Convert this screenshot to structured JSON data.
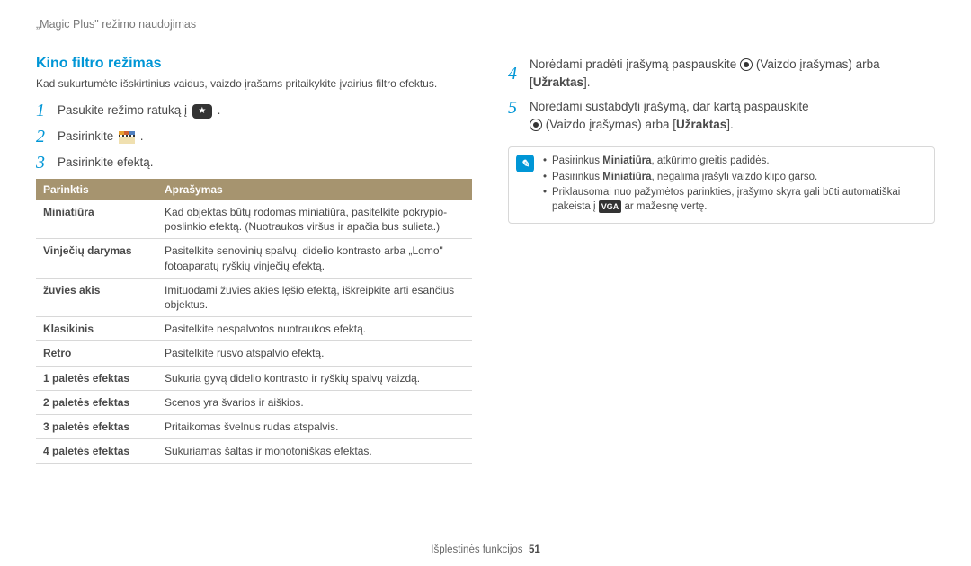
{
  "breadcrumb": "„Magic Plus\" režimo naudojimas",
  "section_title": "Kino filtro režimas",
  "intro": "Kad sukurtumėte išskirtinius vaidus, vaizdo įrašams pritaikykite įvairius filtro efektus.",
  "steps_left": [
    {
      "num": "1",
      "text_before": "Pasukite režimo ratuką į ",
      "icon": "mode-dial",
      "text_after": "."
    },
    {
      "num": "2",
      "text_before": "Pasirinkite ",
      "icon": "film",
      "text_after": "."
    },
    {
      "num": "3",
      "text_before": "Pasirinkite efektą.",
      "icon": null,
      "text_after": ""
    }
  ],
  "table": {
    "headers": [
      "Parinktis",
      "Aprašymas"
    ],
    "rows": [
      {
        "name": "Miniatiūra",
        "desc": "Kad objektas būtų rodomas miniatiūra, pasitelkite pokrypio-poslinkio efektą. (Nuotraukos viršus ir apačia bus sulieta.)"
      },
      {
        "name": "Vinječių darymas",
        "desc": "Pasitelkite senovinių spalvų, didelio kontrasto arba „Lomo\" fotoaparatų ryškių vinječių efektą."
      },
      {
        "name": "žuvies akis",
        "desc": "Imituodami žuvies akies lęšio efektą, iškreipkite arti esančius objektus."
      },
      {
        "name": "Klasikinis",
        "desc": "Pasitelkite nespalvotos nuotraukos efektą."
      },
      {
        "name": "Retro",
        "desc": "Pasitelkite rusvo atspalvio efektą."
      },
      {
        "name": "1 paletės efektas",
        "desc": "Sukuria gyvą didelio kontrasto ir ryškių spalvų vaizdą."
      },
      {
        "name": "2 paletės efektas",
        "desc": "Scenos yra švarios ir aiškios."
      },
      {
        "name": "3 paletės efektas",
        "desc": "Pritaikomas švelnus rudas atspalvis."
      },
      {
        "name": "4 paletės efektas",
        "desc": "Sukuriamas šaltas ir monotoniškas efektas."
      }
    ]
  },
  "steps_right": {
    "s4": {
      "num": "4",
      "pre": "Norėdami pradėti įrašymą paspauskite ",
      "mid": " (Vaizdo įrašymas) arba [",
      "bold": "Užraktas",
      "post": "]."
    },
    "s5": {
      "num": "5",
      "line1": "Norėdami sustabdyti įrašymą, dar kartą paspauskite",
      "line2_pre": "",
      "line2_mid": " (Vaizdo įrašymas) arba [",
      "line2_bold": "Užraktas",
      "line2_post": "]."
    }
  },
  "notes": {
    "n1_pre": "Pasirinkus ",
    "n1_bold": "Miniatiūra",
    "n1_post": ", atkūrimo greitis padidės.",
    "n2_pre": "Pasirinkus ",
    "n2_bold": "Miniatiūra",
    "n2_post": ", negalima įrašyti vaizdo klipo garso.",
    "n3_pre": "Priklausomai nuo pažymėtos parinkties, įrašymo skyra gali būti automatiškai pakeista į ",
    "n3_post": " ar mažesnę vertę."
  },
  "vga_label": "VGA",
  "footer_text": "Išplėstinės funkcijos",
  "footer_page": "51"
}
